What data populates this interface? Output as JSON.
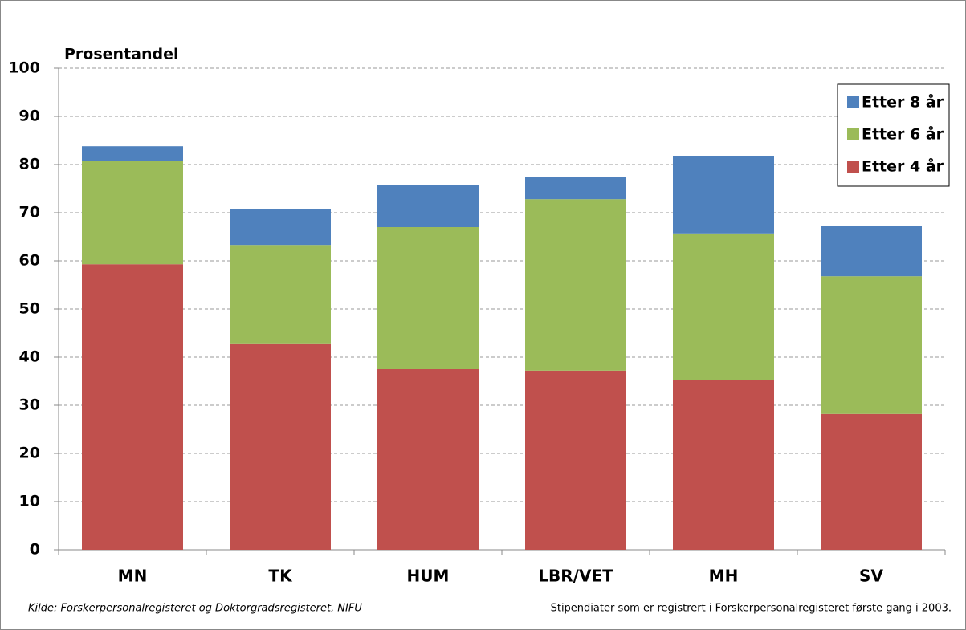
{
  "chart_data": {
    "type": "stacked_bar",
    "y_label": "Prosentandel",
    "categories": [
      "MN",
      "TK",
      "HUM",
      "LBR/VET",
      "MH",
      "SV"
    ],
    "series": [
      {
        "name": "Etter 4 år",
        "color": "#c0504d",
        "values": [
          59.3,
          42.7,
          37.5,
          37.2,
          35.3,
          28.2
        ]
      },
      {
        "name": "Etter 6 år",
        "color": "#9bbb59",
        "values": [
          21.4,
          20.6,
          29.5,
          35.6,
          30.4,
          28.6
        ]
      },
      {
        "name": "Etter 8 år",
        "color": "#4f81bd",
        "values": [
          3.1,
          7.5,
          8.8,
          4.7,
          16.0,
          10.5
        ]
      }
    ],
    "ylim": [
      0,
      100
    ],
    "yticks": [
      0,
      10,
      20,
      30,
      40,
      50,
      60,
      70,
      80,
      90,
      100
    ],
    "grid": true,
    "legend": "upper right",
    "source": "Kilde: Forskerpersonalregisteret  og Doktorgradsregisteret,  NIFU",
    "note": "Stipendiater som er registrert i Forskerpersonalregisteret  første gang i 2003."
  }
}
